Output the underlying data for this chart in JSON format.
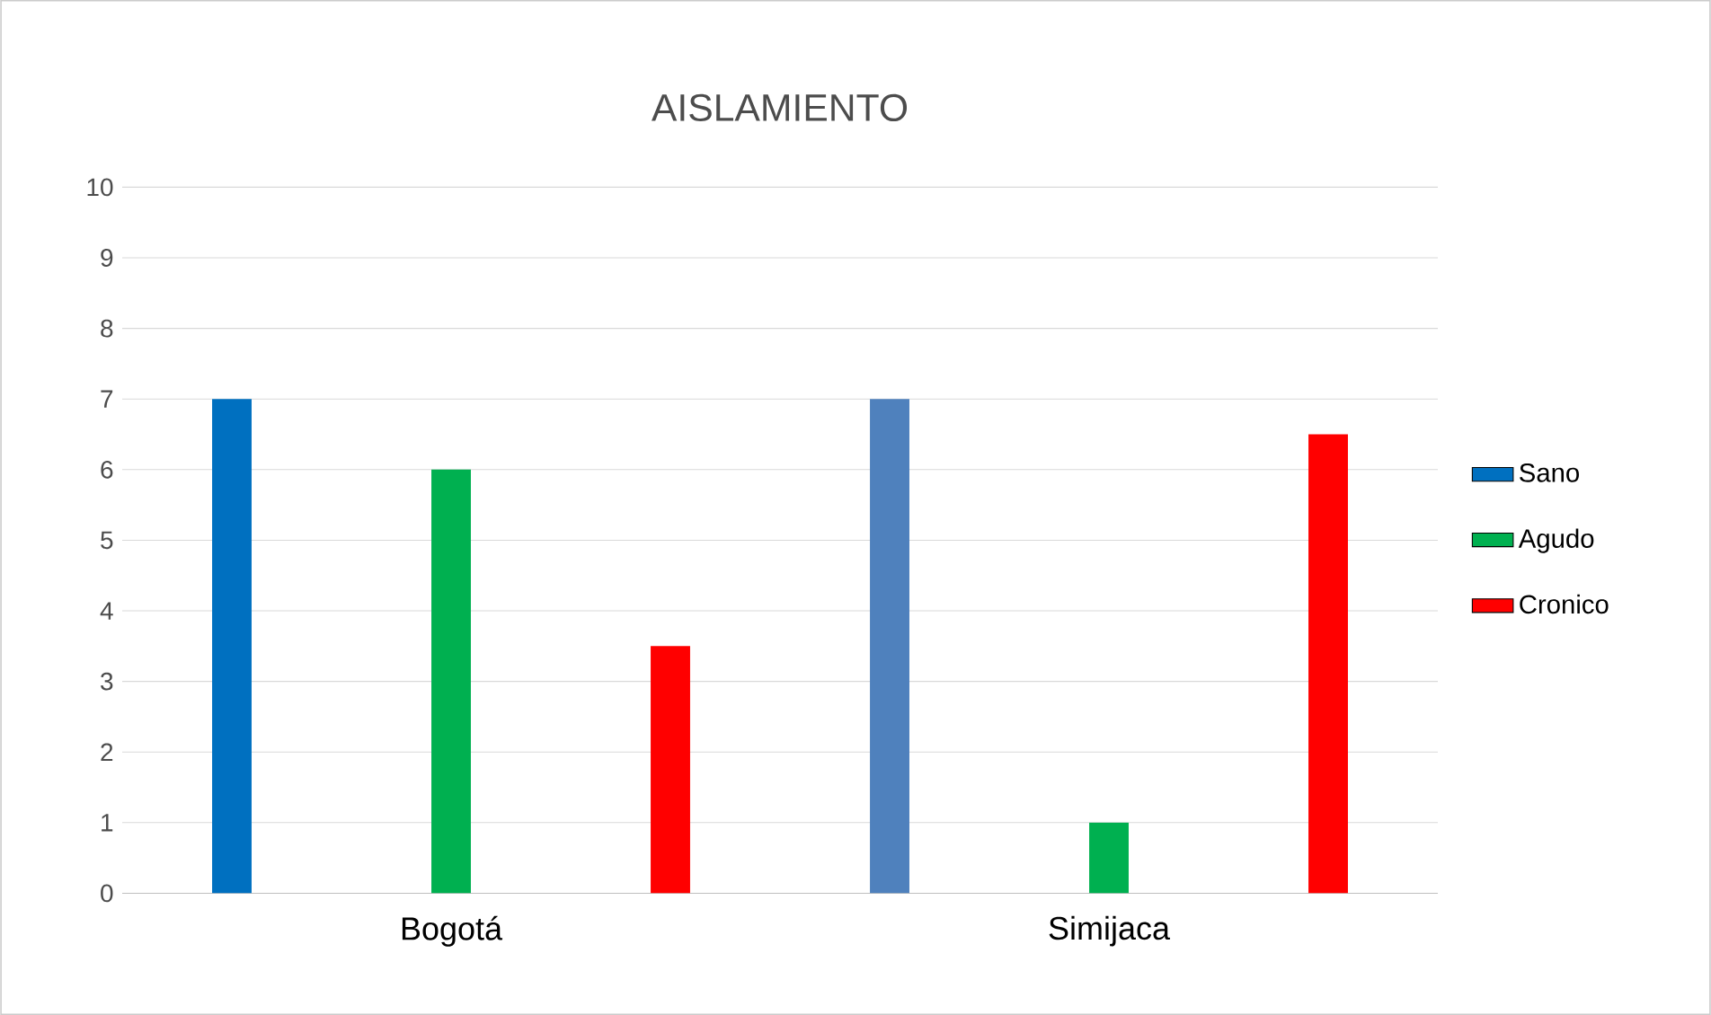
{
  "chart_data": {
    "type": "bar",
    "title": "AISLAMIENTO",
    "categories": [
      "Bogotá",
      "Simijaca"
    ],
    "series": [
      {
        "name": "Sano",
        "color": "#0070c0",
        "colors": [
          "#0070c0",
          "#4f81bd"
        ],
        "values": [
          7,
          7
        ]
      },
      {
        "name": "Agudo",
        "color": "#00b050",
        "values": [
          6,
          1
        ]
      },
      {
        "name": "Cronico",
        "color": "#ff0000",
        "values": [
          3.5,
          6.5
        ]
      }
    ],
    "ylim": [
      0,
      10
    ],
    "yticks": [
      0,
      1,
      2,
      3,
      4,
      5,
      6,
      7,
      8,
      9,
      10
    ],
    "grid": "y",
    "legend": "right"
  }
}
